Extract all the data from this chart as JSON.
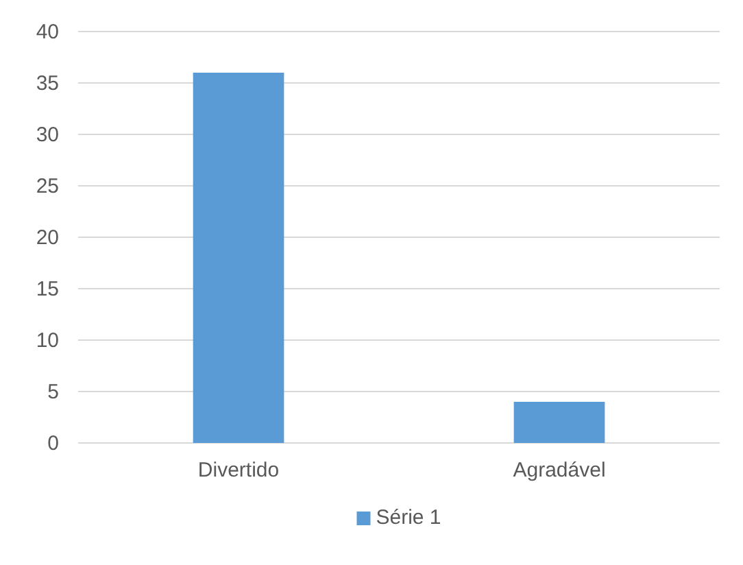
{
  "chart_data": {
    "type": "bar",
    "categories": [
      "Divertido",
      "Agradável"
    ],
    "series": [
      {
        "name": "Série 1",
        "color": "#5b9bd5",
        "values": [
          36,
          4
        ]
      }
    ],
    "ylim": [
      0,
      40
    ],
    "yticks": [
      0,
      5,
      10,
      15,
      20,
      25,
      30,
      35,
      40
    ],
    "grid": "y",
    "legend": "bottom"
  }
}
